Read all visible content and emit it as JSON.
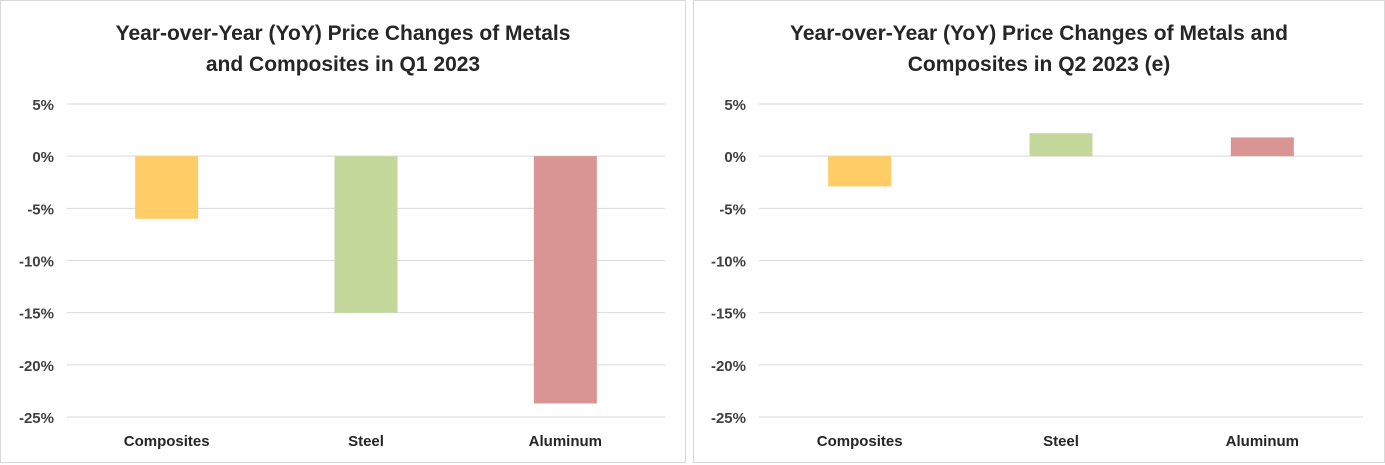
{
  "chart_data": [
    {
      "type": "bar",
      "title_lines": [
        "Year-over-Year (YoY) Price Changes of Metals",
        "and Composites in Q1 2023"
      ],
      "categories": [
        "Composites",
        "Steel",
        "Aluminum"
      ],
      "values": [
        -6,
        -15,
        -23.7
      ],
      "colors": [
        "#ffcc66",
        "#c4d79b",
        "#d99594"
      ],
      "ylim": [
        -25,
        5
      ],
      "yticks": [
        5,
        0,
        -5,
        -10,
        -15,
        -20,
        -25
      ],
      "ytick_labels": [
        "5%",
        "0%",
        "-5%",
        "-10%",
        "-15%",
        "-20%",
        "-25%"
      ],
      "xlabel": "",
      "ylabel": "",
      "grid": true,
      "legend": "none"
    },
    {
      "type": "bar",
      "title_lines": [
        "Year-over-Year (YoY) Price Changes of Metals and",
        "Composites in Q2 2023 (e)"
      ],
      "categories": [
        "Composites",
        "Steel",
        "Aluminum"
      ],
      "values": [
        -2.9,
        2.2,
        1.8
      ],
      "colors": [
        "#ffcc66",
        "#c4d79b",
        "#d99594"
      ],
      "ylim": [
        -25,
        5
      ],
      "yticks": [
        5,
        0,
        -5,
        -10,
        -15,
        -20,
        -25
      ],
      "ytick_labels": [
        "5%",
        "0%",
        "-5%",
        "-10%",
        "-15%",
        "-20%",
        "-25%"
      ],
      "xlabel": "",
      "ylabel": "",
      "grid": true,
      "legend": "none"
    }
  ]
}
